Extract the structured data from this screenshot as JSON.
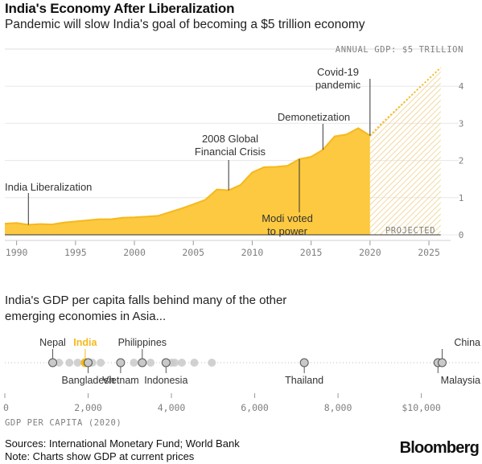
{
  "header": {
    "title": "India's Economy After Liberalization",
    "subtitle": "Pandemic will slow India's goal of becoming a $5 trillion economy"
  },
  "section2": {
    "text": "India's GDP per capita falls behind many of the other emerging economies in Asia..."
  },
  "footer": {
    "sources": "Sources: International Monetary Fund; World Bank",
    "note": "Note: Charts show GDP at current prices",
    "logo": "Bloomberg"
  },
  "colors": {
    "area": "#fcc940",
    "area_line": "#f6b81c",
    "india": "#f6b81c",
    "dots": "#c9c9c9",
    "axis_text": "#7f7f7f"
  },
  "chart_data": [
    {
      "type": "area",
      "ylabel": "ANNUAL GDP: $5 TRILLION",
      "ylim": [
        0,
        5
      ],
      "xlim": [
        1989,
        2026.5
      ],
      "y_ticks": [
        0,
        1,
        2,
        3,
        4
      ],
      "x_ticks": [
        1990,
        1995,
        2000,
        2005,
        2010,
        2015,
        2020,
        2025
      ],
      "series": [
        {
          "name": "",
          "x": [
            1989,
            1990,
            1991,
            1992,
            1993,
            1994,
            1995,
            1996,
            1997,
            1998,
            1999,
            2000,
            2001,
            2002,
            2003,
            2004,
            2005,
            2006,
            2007,
            2008,
            2009,
            2010,
            2011,
            2012,
            2013,
            2014,
            2015,
            2016,
            2017,
            2018,
            2019,
            2020
          ],
          "values": [
            0.3,
            0.32,
            0.27,
            0.29,
            0.28,
            0.33,
            0.36,
            0.39,
            0.42,
            0.42,
            0.46,
            0.47,
            0.49,
            0.51,
            0.61,
            0.71,
            0.82,
            0.94,
            1.22,
            1.2,
            1.34,
            1.68,
            1.82,
            1.83,
            1.86,
            2.04,
            2.1,
            2.29,
            2.65,
            2.7,
            2.87,
            2.67
          ]
        },
        {
          "name": "PROJECTED",
          "x": [
            2020,
            2021,
            2022,
            2023,
            2024,
            2025,
            2026
          ],
          "values": [
            2.67,
            3.0,
            3.3,
            3.6,
            3.9,
            4.2,
            4.5
          ]
        }
      ],
      "annotations": [
        {
          "text": "India Liberalization",
          "x": 1991
        },
        {
          "text": "2008 Global Financial Crisis",
          "lines": [
            "2008 Global",
            "Financial Crisis"
          ],
          "x": 2008
        },
        {
          "text": "Modi voted to power",
          "lines": [
            "Modi voted",
            "to power"
          ],
          "x": 2014
        },
        {
          "text": "Demonetization",
          "x": 2016
        },
        {
          "text": "Covid-19 pandemic",
          "lines": [
            "Covid-19",
            "pandemic"
          ],
          "x": 2020
        }
      ],
      "projected_label": "PROJECTED"
    },
    {
      "type": "scatter",
      "xlabel": "GDP PER CAPITA (2020)",
      "xlim": [
        0,
        10800
      ],
      "x_ticks": [
        0,
        2000,
        4000,
        6000,
        8000,
        10000
      ],
      "x_tick_labels": [
        "0",
        "2,000",
        "4,000",
        "6,000",
        "8,000",
        "$10,000"
      ],
      "points": [
        {
          "name": "Nepal",
          "value": 1150,
          "labeled": true,
          "label_pos": "above"
        },
        {
          "name": "India",
          "value": 1930,
          "labeled": true,
          "label_pos": "above",
          "highlight": true
        },
        {
          "name": "Bangladesh",
          "value": 2000,
          "labeled": true,
          "label_pos": "below"
        },
        {
          "name": "Vietnam",
          "value": 2780,
          "labeled": true,
          "label_pos": "below"
        },
        {
          "name": "Philippines",
          "value": 3300,
          "labeled": true,
          "label_pos": "above"
        },
        {
          "name": "Indonesia",
          "value": 3870,
          "labeled": true,
          "label_pos": "below"
        },
        {
          "name": "Thailand",
          "value": 7190,
          "labeled": true,
          "label_pos": "below"
        },
        {
          "name": "Malaysia",
          "value": 10400,
          "labeled": true,
          "label_pos": "below"
        },
        {
          "name": "China",
          "value": 10500,
          "labeled": true,
          "label_pos": "above"
        },
        {
          "name": "",
          "value": 1300,
          "labeled": false
        },
        {
          "name": "",
          "value": 1550,
          "labeled": false
        },
        {
          "name": "",
          "value": 1750,
          "labeled": false
        },
        {
          "name": "",
          "value": 2100,
          "labeled": false
        },
        {
          "name": "",
          "value": 2300,
          "labeled": false
        },
        {
          "name": "",
          "value": 3100,
          "labeled": false
        },
        {
          "name": "",
          "value": 3500,
          "labeled": false
        },
        {
          "name": "",
          "value": 4000,
          "labeled": false
        },
        {
          "name": "",
          "value": 4080,
          "labeled": false
        },
        {
          "name": "",
          "value": 4250,
          "labeled": false
        },
        {
          "name": "",
          "value": 4550,
          "labeled": false
        },
        {
          "name": "",
          "value": 4970,
          "labeled": false
        }
      ]
    }
  ]
}
